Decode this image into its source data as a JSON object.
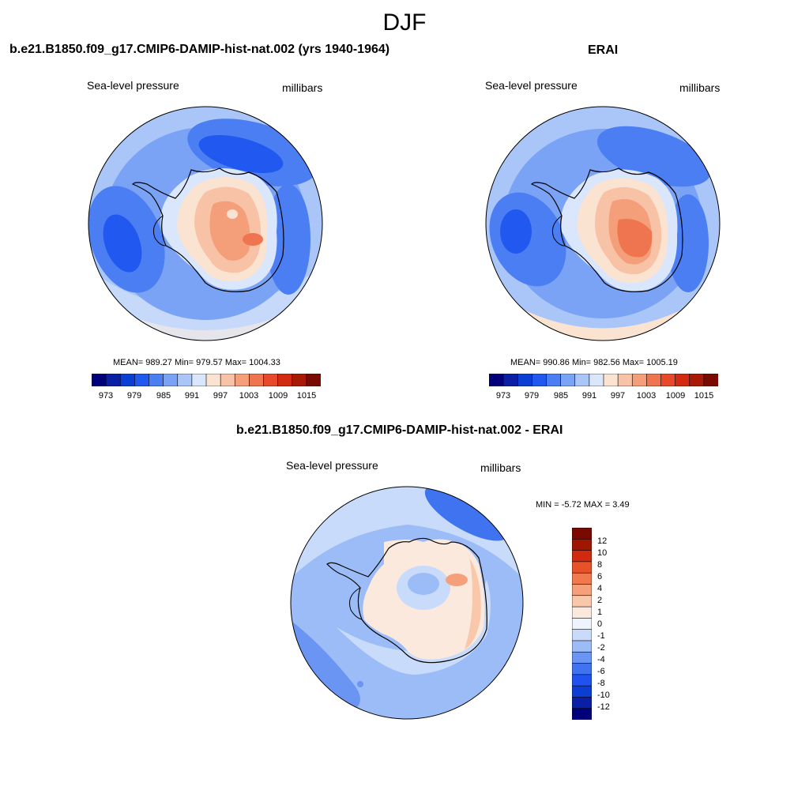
{
  "figure": {
    "title": "DJF"
  },
  "panels": [
    {
      "id": "model",
      "title": "b.e21.B1850.f09_g17.CMIP6-DAMIP-hist-nat.002 (yrs 1940-1964)",
      "left_label": "Sea-level pressure",
      "right_label": "millibars",
      "stats": "MEAN= 989.27  Min= 979.57  Max= 1004.33",
      "colorbar_ticks": [
        "973",
        "979",
        "985",
        "991",
        "997",
        "1003",
        "1009",
        "1015"
      ]
    },
    {
      "id": "obs",
      "title": "ERAI",
      "left_label": "Sea-level pressure",
      "right_label": "millibars",
      "stats": "MEAN= 990.86  Min= 982.56  Max= 1005.19",
      "colorbar_ticks": [
        "973",
        "979",
        "985",
        "991",
        "997",
        "1003",
        "1009",
        "1015"
      ]
    },
    {
      "id": "diff",
      "title": "b.e21.B1850.f09_g17.CMIP6-DAMIP-hist-nat.002 - ERAI",
      "left_label": "Sea-level pressure",
      "right_label": "millibars",
      "stats": "MIN =  -5.72 MAX =   3.49",
      "colorbar_ticks": [
        "12",
        "10",
        "8",
        "6",
        "4",
        "2",
        "1",
        "0",
        "-1",
        "-2",
        "-4",
        "-6",
        "-8",
        "-10",
        "-12"
      ]
    }
  ],
  "colors": {
    "abs_colorbar": [
      "#00007a",
      "#0a1fa6",
      "#0b3fd4",
      "#2158f0",
      "#4a7ef2",
      "#7aa2f5",
      "#aac6f8",
      "#d9e6fb",
      "#fbe3d2",
      "#f8c2a6",
      "#f49e7a",
      "#ef7450",
      "#e8492b",
      "#d32a12",
      "#a81a06",
      "#7a0a00"
    ],
    "diff_colorbar": [
      "#00007a",
      "#0a1fa6",
      "#0b3fd4",
      "#1f52ee",
      "#3f73f0",
      "#6a95f3",
      "#9cbcf7",
      "#c9dbfa",
      "#eef3fd",
      "#fce9de",
      "#f9c8ab",
      "#f5a07a",
      "#f07a4e",
      "#e85228",
      "#d22a10",
      "#a11600",
      "#7a0a00"
    ],
    "ocean_low": "#3f73f0",
    "ocean_mid": "#7aa2f5",
    "ocean_light": "#aac6f8",
    "ocean_pale": "#d9e6fb",
    "land_warm": "#f8c2a6",
    "land_hot": "#f49e7a",
    "land_peak": "#ef7450",
    "coast": "#000000"
  }
}
